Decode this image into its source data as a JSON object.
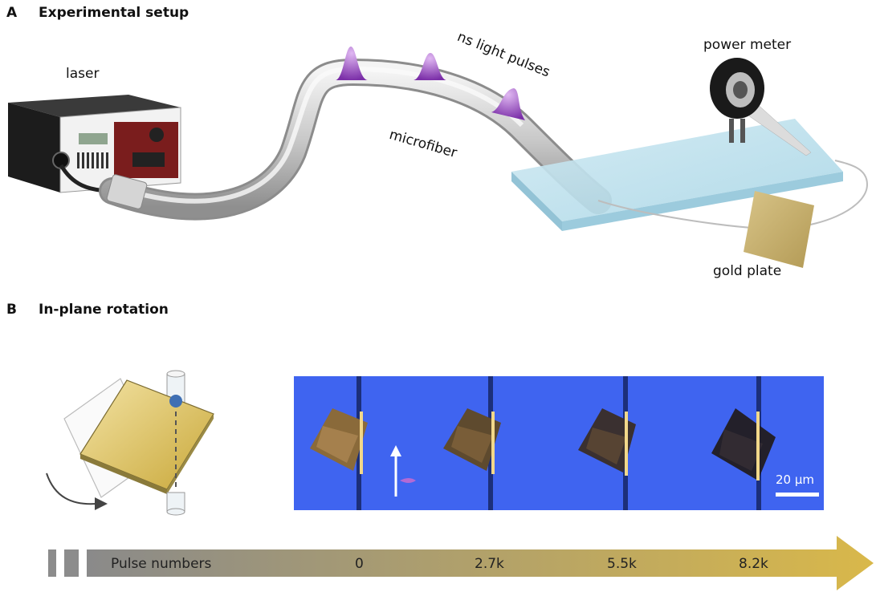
{
  "panel_a": {
    "letter": "A",
    "title": "Experimental setup"
  },
  "panel_b": {
    "letter": "B",
    "title": "In-plane rotation"
  },
  "labels": {
    "laser": "laser",
    "microfiber": "microfiber",
    "pulses": "ns light pulses",
    "power_meter": "power meter",
    "gold_plate": "gold plate"
  },
  "scale_bar": "20 μm",
  "timeline": {
    "title": "Pulse numbers",
    "ticks": [
      "0",
      "2.7k",
      "5.5k",
      "8.2k"
    ]
  },
  "colors": {
    "microscope_bg": "#3f64f0",
    "gold": "#c9b06a",
    "pulse": "#8a3db5",
    "arrow_start": "#8a8a8a",
    "arrow_end": "#d9b84a"
  }
}
